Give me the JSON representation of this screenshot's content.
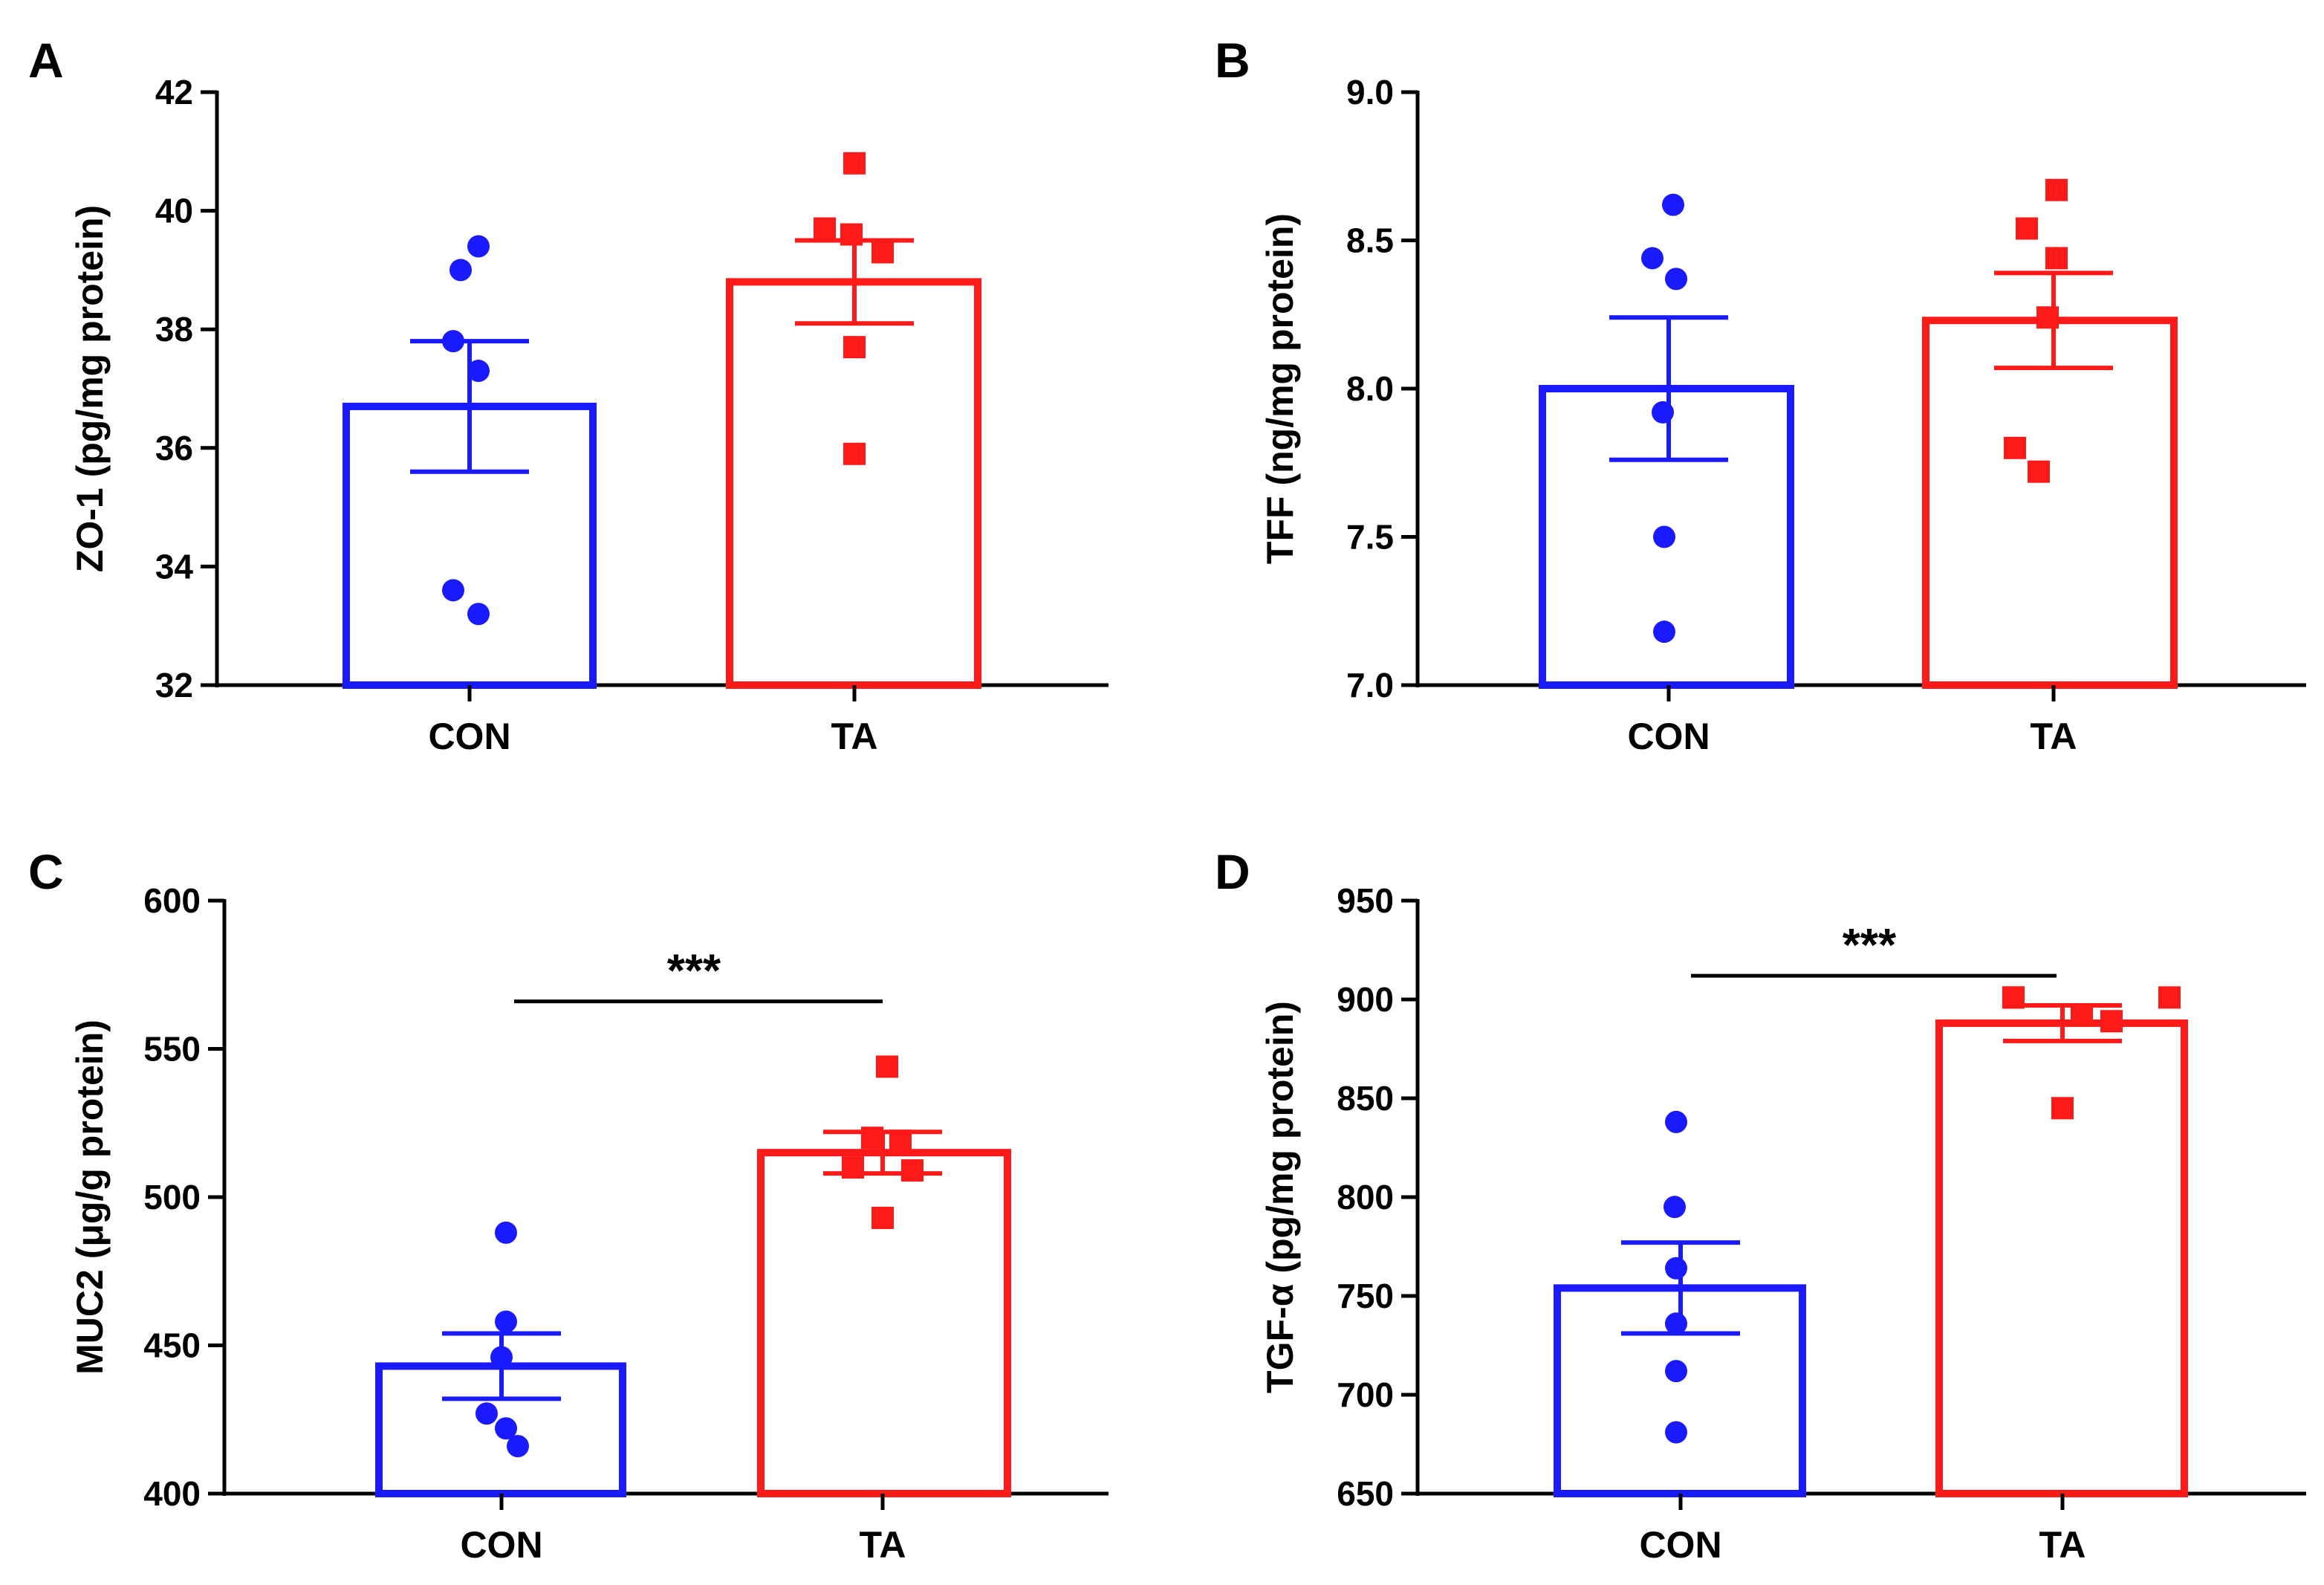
{
  "figure": {
    "colors": {
      "CON": "#1a1aff",
      "TA": "#ff1a1a",
      "axis": "#000000"
    }
  },
  "chart_data": [
    {
      "panel": "A",
      "type": "bar",
      "ylabel": "ZO-1 (pg/mg protein)",
      "ylim": [
        32,
        42
      ],
      "yticks": [
        32,
        34,
        36,
        38,
        40,
        42
      ],
      "ytick_labels": [
        "32",
        "34",
        "36",
        "38",
        "40",
        "42"
      ],
      "categories": [
        "CON",
        "TA"
      ],
      "series": [
        {
          "name": "CON",
          "mean": 36.7,
          "sem": 1.1,
          "marker": "circle",
          "points": [
            39.4,
            39.0,
            37.8,
            37.3,
            33.6,
            33.2
          ]
        },
        {
          "name": "TA",
          "mean": 38.8,
          "sem": 0.7,
          "marker": "square",
          "points": [
            40.8,
            39.7,
            39.6,
            39.3,
            37.7,
            35.9
          ]
        }
      ],
      "significance": null
    },
    {
      "panel": "B",
      "type": "bar",
      "ylabel": "TFF (ng/mg protein)",
      "ylim": [
        7.0,
        9.0
      ],
      "yticks": [
        7.0,
        7.5,
        8.0,
        8.5,
        9.0
      ],
      "ytick_labels": [
        "7.0",
        "7.5",
        "8.0",
        "8.5",
        "9.0"
      ],
      "categories": [
        "CON",
        "TA"
      ],
      "series": [
        {
          "name": "CON",
          "mean": 8.0,
          "sem": 0.24,
          "marker": "circle",
          "points": [
            8.62,
            8.44,
            8.37,
            7.92,
            7.5,
            7.18
          ]
        },
        {
          "name": "TA",
          "mean": 8.23,
          "sem": 0.16,
          "marker": "square",
          "points": [
            8.67,
            8.54,
            8.44,
            8.24,
            7.8,
            7.72
          ]
        }
      ],
      "significance": null
    },
    {
      "panel": "C",
      "type": "bar",
      "ylabel": "MUC2 (μg/g protein)",
      "ylim": [
        400,
        600
      ],
      "yticks": [
        400,
        450,
        500,
        550,
        600
      ],
      "ytick_labels": [
        "400",
        "450",
        "500",
        "550",
        "600"
      ],
      "categories": [
        "CON",
        "TA"
      ],
      "series": [
        {
          "name": "CON",
          "mean": 443,
          "sem": 11,
          "marker": "circle",
          "points": [
            488,
            458,
            446,
            427,
            422,
            416
          ]
        },
        {
          "name": "TA",
          "mean": 515,
          "sem": 7,
          "marker": "square",
          "points": [
            544,
            520,
            519,
            510,
            509,
            493
          ]
        }
      ],
      "significance": {
        "label": "***",
        "y": 566
      }
    },
    {
      "panel": "D",
      "type": "bar",
      "ylabel": "TGF-α (pg/mg protein)",
      "ylim": [
        650,
        950
      ],
      "yticks": [
        650,
        700,
        750,
        800,
        850,
        900,
        950
      ],
      "ytick_labels": [
        "650",
        "700",
        "750",
        "800",
        "850",
        "900",
        "950"
      ],
      "categories": [
        "CON",
        "TA"
      ],
      "series": [
        {
          "name": "CON",
          "mean": 754,
          "sem": 23,
          "marker": "circle",
          "points": [
            838,
            795,
            764,
            736,
            712,
            681
          ]
        },
        {
          "name": "TA",
          "mean": 888,
          "sem": 9,
          "marker": "square",
          "points": [
            901,
            901,
            901,
            892,
            889,
            845
          ]
        }
      ],
      "significance": {
        "label": "***",
        "y": 912
      }
    }
  ]
}
